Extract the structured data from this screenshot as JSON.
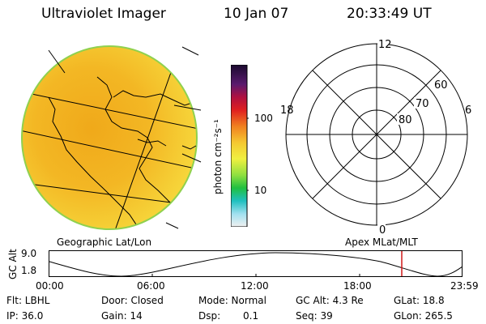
{
  "header": {
    "title": "Ultraviolet Imager",
    "date": "10 Jan 07",
    "time": "20:33:49 UT"
  },
  "colorbar": {
    "label": "photon cm⁻²s⁻¹",
    "ticks": [
      "100",
      "10"
    ]
  },
  "polar": {
    "mlt_labels": {
      "top": "12",
      "left": "18",
      "right": "6",
      "bottom": "0"
    },
    "lat_labels": [
      "60",
      "70",
      "80"
    ]
  },
  "captions": {
    "left": "Geographic Lat/Lon",
    "right": "Apex MLat/MLT"
  },
  "altitude_plot": {
    "ylabel": "GC Alt",
    "yticks": [
      "9.0",
      "1.8"
    ],
    "xticks": [
      "00:00",
      "06:00",
      "12:00",
      "18:00",
      "23:59"
    ]
  },
  "status": {
    "row1": {
      "filter": "Flt: LBHL",
      "door": "Door: Closed",
      "mode": "Mode: Normal",
      "gc_alt": "GC Alt: 4.3 Re",
      "glat": "GLat:  18.8"
    },
    "row2": {
      "ip": "IP: 36.0",
      "gain": "Gain: 14",
      "dsp_label": "Dsp:",
      "dsp_value": "0.1",
      "seq": "Seq: 39",
      "glon": "GLon: 265.5"
    }
  },
  "colors": {
    "disk_fill": "#f2b21c",
    "disk_edge": "#8fd14f",
    "marker": "#d01818"
  }
}
